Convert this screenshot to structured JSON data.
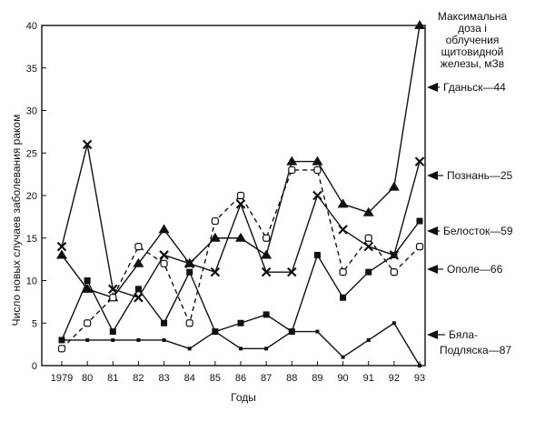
{
  "chart_data": {
    "type": "line",
    "xlabel": "Годы",
    "ylabel": "Число новых случаев заболевания раком",
    "ylim": [
      0,
      40
    ],
    "yticks": [
      0,
      5,
      10,
      15,
      20,
      25,
      30,
      35,
      40
    ],
    "x": [
      1979,
      1980,
      1981,
      1982,
      1983,
      1984,
      1985,
      1986,
      1987,
      1988,
      1989,
      1990,
      1991,
      1992,
      1993
    ],
    "xtick_labels": [
      "1979",
      "80",
      "81",
      "82",
      "83",
      "84",
      "85",
      "86",
      "87",
      "88",
      "89",
      "90",
      "91",
      "92",
      "93"
    ],
    "grid": false,
    "legend_title": "Максимальна доза і облучения щитовидной железы, мЗв",
    "series": [
      {
        "name": "Гданьск—44",
        "marker": "triangle",
        "dash": "solid",
        "values": [
          13,
          9,
          8,
          12,
          16,
          12,
          15,
          15,
          13,
          24,
          24,
          19,
          18,
          21,
          40
        ]
      },
      {
        "name": "Познань—25",
        "marker": "x",
        "dash": "solid",
        "values": [
          14,
          26,
          9,
          8,
          13,
          12,
          11,
          19,
          11,
          11,
          20,
          16,
          14,
          13,
          24
        ]
      },
      {
        "name": "Белосток—59",
        "marker": "square",
        "dash": "solid",
        "values": [
          3,
          10,
          4,
          9,
          5,
          11,
          4,
          5,
          6,
          4,
          13,
          8,
          11,
          13,
          17
        ]
      },
      {
        "name": "Ополе—66",
        "marker": "open-square",
        "dash": "dashed",
        "values": [
          2,
          5,
          8,
          14,
          12,
          5,
          17,
          20,
          15,
          23,
          23,
          11,
          15,
          11,
          14
        ]
      },
      {
        "name": "Бяла-Подляска—87",
        "marker": "small",
        "dash": "solid",
        "values": [
          3,
          3,
          3,
          3,
          3,
          2,
          4,
          2,
          2,
          4,
          4,
          1,
          3,
          5,
          0
        ]
      }
    ]
  }
}
